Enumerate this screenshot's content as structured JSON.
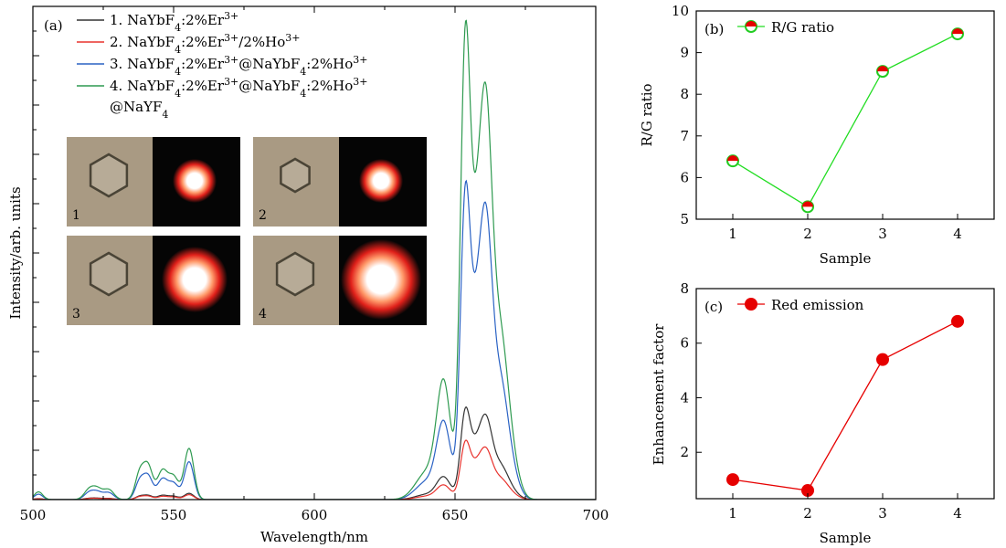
{
  "chart_data": [
    {
      "panel_label": "(a)",
      "type": "line",
      "xlabel": "Wavelength/nm",
      "ylabel": "Intensity/arb. units",
      "xlim": [
        500,
        700
      ],
      "xticks": [
        "500",
        "550",
        "600",
        "650",
        "700"
      ],
      "ylim": [
        0,
        100
      ],
      "y_tick_labels": "none",
      "legend_position": "top-left",
      "series": [
        {
          "name": "1. NaYbF4:2%Er3+",
          "legend": {
            "index": "1.",
            "parts": [
              "NaYbF",
              "4",
              ":2%Er",
              "3+"
            ]
          },
          "color": "#333333",
          "peaks": {
            "p540": 1.2,
            "p550": 1.2,
            "p555": 1.4,
            "p654": 17.3,
            "p657": 14.3,
            "p661": 16.7
          }
        },
        {
          "name": "2. NaYbF4:2%Er3+/2%Ho3+",
          "legend": {
            "index": "2.",
            "parts": [
              "NaYbF",
              "4",
              ":2%Er",
              "3+",
              "/2%Ho",
              "3+"
            ]
          },
          "color": "#e8322d",
          "peaks": {
            "p540": 1.0,
            "p550": 0.9,
            "p555": 1.1,
            "p654": 11.1,
            "p657": 9.2,
            "p661": 10.2
          }
        },
        {
          "name": "3. NaYbF4:2%Er3+@NaYbF4:2%Ho3+",
          "legend": {
            "index": "3.",
            "parts": [
              "NaYbF",
              "4",
              ":2%Er",
              "3+",
              "@NaYbF",
              "4",
              ":2%Ho",
              "3+"
            ]
          },
          "color": "#2a62c4",
          "peaks": {
            "p540": 6.8,
            "p550": 5.8,
            "p555": 8.5,
            "p654": 59.6,
            "p657": 49.3,
            "p661": 58.2
          }
        },
        {
          "name": "4. NaYbF4:2%Er3+@NaYbF4:2%Ho3+@NaYF4",
          "legend": {
            "index": "4.",
            "parts": [
              "NaYbF",
              "4",
              ":2%Er",
              "3+",
              "@NaYbF",
              "4",
              ":2%Ho",
              "3+"
            ],
            "line2": [
              "@NaYF",
              "4"
            ]
          },
          "color": "#2e9a50",
          "peaks": {
            "p540": 9.8,
            "p550": 8.2,
            "p555": 11.5,
            "p654": 90.7,
            "p657": 70.9,
            "p661": 81.3
          }
        }
      ],
      "insets": [
        {
          "number": "1",
          "particle": "hexagonal particle",
          "glow": "small"
        },
        {
          "number": "2",
          "particle": "hexagonal particle",
          "glow": "small"
        },
        {
          "number": "3",
          "particle": "hexagonal particle",
          "glow": "large"
        },
        {
          "number": "4",
          "particle": "hexagonal particle",
          "glow": "largest"
        }
      ]
    },
    {
      "panel_label": "(b)",
      "type": "line",
      "categories": [
        "1",
        "2",
        "3",
        "4"
      ],
      "xlabel": "Sample",
      "ylabel": "R/G ratio",
      "ylim": [
        5,
        10
      ],
      "yticks": [
        "5",
        "6",
        "7",
        "8",
        "9",
        "10"
      ],
      "legend_position": "top-left",
      "series": [
        {
          "name": "R/G ratio",
          "values": [
            6.4,
            5.3,
            8.55,
            9.45
          ],
          "line_color": "#22dd22",
          "marker": "half-filled circle",
          "marker_top": "#e60000",
          "marker_bottom": "#ffffff",
          "marker_edge": "#22cc22"
        }
      ]
    },
    {
      "panel_label": "(c)",
      "type": "line",
      "categories": [
        "1",
        "2",
        "3",
        "4"
      ],
      "xlabel": "Sample",
      "ylabel": "Enhancement factor",
      "ylim": [
        0.3,
        8
      ],
      "yticks": [
        "2",
        "4",
        "6",
        "8"
      ],
      "legend_position": "top-left",
      "series": [
        {
          "name": "Red emission",
          "values": [
            1.0,
            0.6,
            5.4,
            6.8
          ],
          "line_color": "#e60000",
          "marker": "filled circle",
          "marker_fill": "#e60000"
        }
      ]
    }
  ]
}
